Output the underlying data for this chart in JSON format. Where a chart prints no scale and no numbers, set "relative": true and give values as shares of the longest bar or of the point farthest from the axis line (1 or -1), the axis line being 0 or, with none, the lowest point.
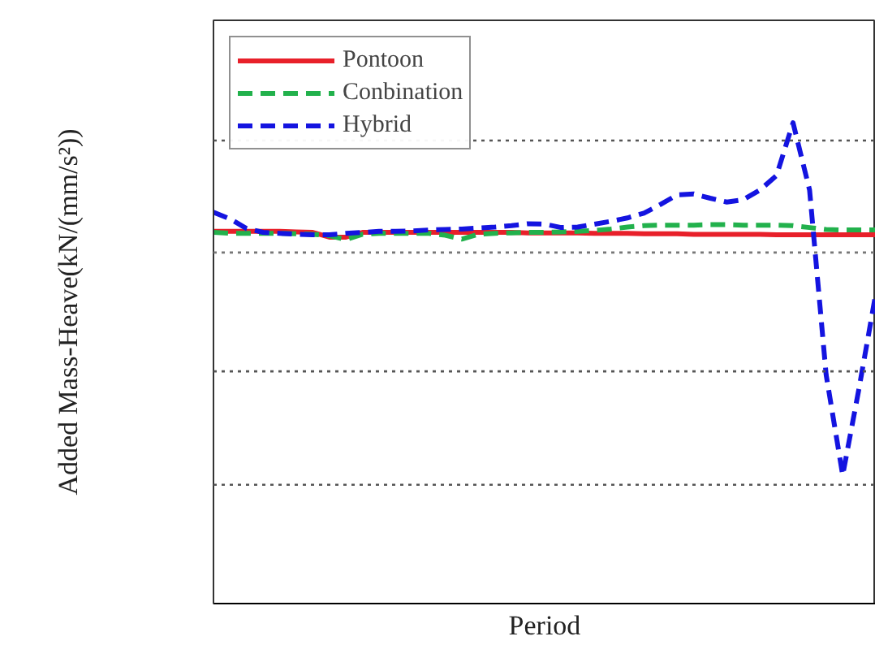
{
  "chart_data": {
    "type": "line",
    "relative": true,
    "xlabel": "Period",
    "ylabel": "Added Mass-Heave(kN/(mm/s²))",
    "categories": [
      null,
      null,
      null,
      null,
      null,
      null,
      null,
      null,
      null,
      null,
      null,
      null,
      null,
      null,
      null,
      null,
      null,
      null,
      null,
      null,
      null,
      null,
      null,
      null,
      null,
      null,
      null,
      null,
      null,
      null,
      null,
      null,
      null,
      null,
      null,
      null,
      null,
      null,
      null,
      null,
      null
    ],
    "series": [
      {
        "name": "Pontoon",
        "color": "#e8202a",
        "line_style": "solid",
        "values": [
          0.774,
          0.774,
          0.774,
          0.774,
          0.774,
          0.773,
          0.772,
          0.762,
          0.762,
          0.772,
          0.772,
          0.772,
          0.772,
          0.772,
          0.772,
          0.772,
          0.772,
          0.772,
          0.772,
          0.771,
          0.771,
          0.771,
          0.771,
          0.77,
          0.77,
          0.77,
          0.769,
          0.769,
          0.769,
          0.768,
          0.768,
          0.768,
          0.768,
          0.768,
          0.767,
          0.767,
          0.767,
          0.767,
          0.767,
          0.767,
          0.767
        ]
      },
      {
        "name": "Conbination",
        "color": "#22b14c",
        "line_style": "dashed",
        "values": [
          0.772,
          0.77,
          0.77,
          0.77,
          0.77,
          0.769,
          0.768,
          0.765,
          0.757,
          0.768,
          0.77,
          0.77,
          0.77,
          0.77,
          0.766,
          0.758,
          0.768,
          0.77,
          0.771,
          0.772,
          0.772,
          0.773,
          0.774,
          0.776,
          0.779,
          0.783,
          0.786,
          0.787,
          0.787,
          0.787,
          0.788,
          0.788,
          0.787,
          0.787,
          0.787,
          0.786,
          0.782,
          0.778,
          0.777,
          0.777,
          0.777
        ]
      },
      {
        "name": "Hybrid",
        "color": "#1414e0",
        "line_style": "dashed",
        "values": [
          0.814,
          0.8,
          0.78,
          0.772,
          0.77,
          0.768,
          0.767,
          0.767,
          0.77,
          0.772,
          0.774,
          0.774,
          0.775,
          0.777,
          0.778,
          0.779,
          0.781,
          0.783,
          0.786,
          0.79,
          0.789,
          0.782,
          0.783,
          0.789,
          0.795,
          0.802,
          0.812,
          0.83,
          0.85,
          0.852,
          0.843,
          0.835,
          0.84,
          0.86,
          0.89,
          1.0,
          0.86,
          0.476,
          0.267,
          0.45,
          0.645
        ]
      }
    ],
    "ref_lines": [
      {
        "axis": "y",
        "value": 0.963,
        "color": "#555555",
        "line_style": "dotted"
      },
      {
        "axis": "y",
        "value": 0.73,
        "color": "#777777",
        "line_style": "dotted"
      },
      {
        "axis": "y",
        "value": 0.483,
        "color": "#555555",
        "line_style": "dotted"
      },
      {
        "axis": "y",
        "value": 0.247,
        "color": "#555555",
        "line_style": "dotted"
      }
    ],
    "legend": "top left"
  }
}
